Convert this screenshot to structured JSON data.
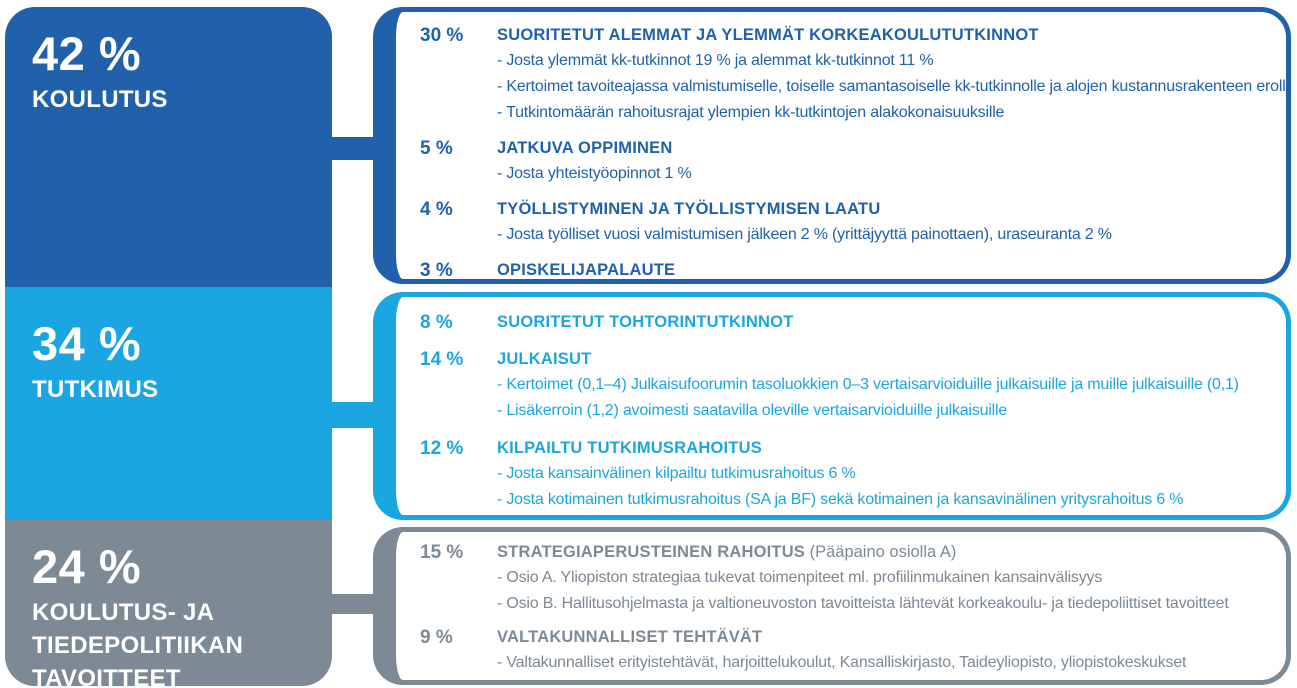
{
  "palette": {
    "dark_blue": "#2161AC",
    "light_blue": "#1BA6E2",
    "gray": "#7D8994",
    "text_on_blocks": "#FFFFFF",
    "background": "#FFFFFF"
  },
  "left_column": [
    {
      "id": "koulutus",
      "percent": "42 %",
      "label": "KOULUTUS",
      "color": "#2161AC"
    },
    {
      "id": "tutkimus",
      "percent": "34 %",
      "label": "TUTKIMUS",
      "color": "#1BA6E2"
    },
    {
      "id": "tavoitteet",
      "percent": "24 %",
      "label": "KOULUTUS- JA\nTIEDEPOLITIIKAN\nTAVOITTEET",
      "color": "#7D8994"
    }
  ],
  "boxes": [
    {
      "id": "koulutus-details",
      "color": "#2161AC",
      "items": [
        {
          "percent": "30 %",
          "title": "SUORITETUT ALEMMAT JA YLEMMÄT KORKEAKOULUTUTKINNOT",
          "bullets": [
            "Josta ylemmät kk-tutkinnot 19 % ja alemmat kk-tutkinnot 11 %",
            "Kertoimet tavoiteajassa valmistumiselle, toiselle samantasoiselle kk-tutkinnolle ja alojen kustannusrakenteen erolle",
            "Tutkintomäärän rahoitusrajat ylempien kk-tutkintojen alakokonaisuuksille"
          ]
        },
        {
          "percent": "5 %",
          "title": "JATKUVA OPPIMINEN",
          "bullets": [
            "Josta yhteistyöopinnot 1 %"
          ]
        },
        {
          "percent": "4 %",
          "title": "TYÖLLISTYMINEN JA TYÖLLISTYMISEN LAATU",
          "bullets": [
            "Josta työlliset vuosi valmistumisen jälkeen 2 % (yrittäjyyttä painottaen), uraseuranta 2 %"
          ]
        },
        {
          "percent": "3 %",
          "title": "OPISKELIJAPALAUTE",
          "bullets": []
        }
      ]
    },
    {
      "id": "tutkimus-details",
      "color": "#1BA6E2",
      "items": [
        {
          "percent": "8 %",
          "title": "SUORITETUT TOHTORINTUTKINNOT",
          "bullets": []
        },
        {
          "percent": "14 %",
          "title": "JULKAISUT",
          "bullets": [
            "Kertoimet (0,1–4) Julkaisufoorumin tasoluokkien 0–3 vertaisarvioiduille julkaisuille ja muille julkaisuille (0,1)",
            "Lisäkerroin (1,2) avoimesti saatavilla oleville vertaisarvioiduille julkaisuille"
          ]
        },
        {
          "percent": "12 %",
          "title": "KILPAILTU TUTKIMUSRAHOITUS",
          "bullets": [
            "Josta kansainvälinen kilpailtu tutkimusrahoitus 6 %",
            "Josta kotimainen tutkimusrahoitus (SA ja BF) sekä kotimainen ja kansavinälinen yritysrahoitus 6 %"
          ]
        }
      ]
    },
    {
      "id": "tavoitteet-details",
      "color": "#7D8994",
      "items": [
        {
          "percent": "15 %",
          "title": "STRATEGIAPERUSTEINEN RAHOITUS",
          "title_suffix": " (Pääpaino osiolla A)",
          "bullets": [
            "Osio A. Yliopiston strategiaa tukevat toimenpiteet ml. profiilinmukainen kansainvälisyys",
            "Osio B. Hallitusohjelmasta ja valtioneuvoston tavoitteista lähtevät korkeakoulu- ja tiedepoliittiset tavoitteet"
          ]
        },
        {
          "percent": "9 %",
          "title": "VALTAKUNNALLISET TEHTÄVÄT",
          "bullets": [
            "Valtakunnalliset erityistehtävät, harjoittelukoulut, Kansalliskirjasto, Taideyliopisto, yliopistokeskukset"
          ]
        }
      ]
    }
  ]
}
